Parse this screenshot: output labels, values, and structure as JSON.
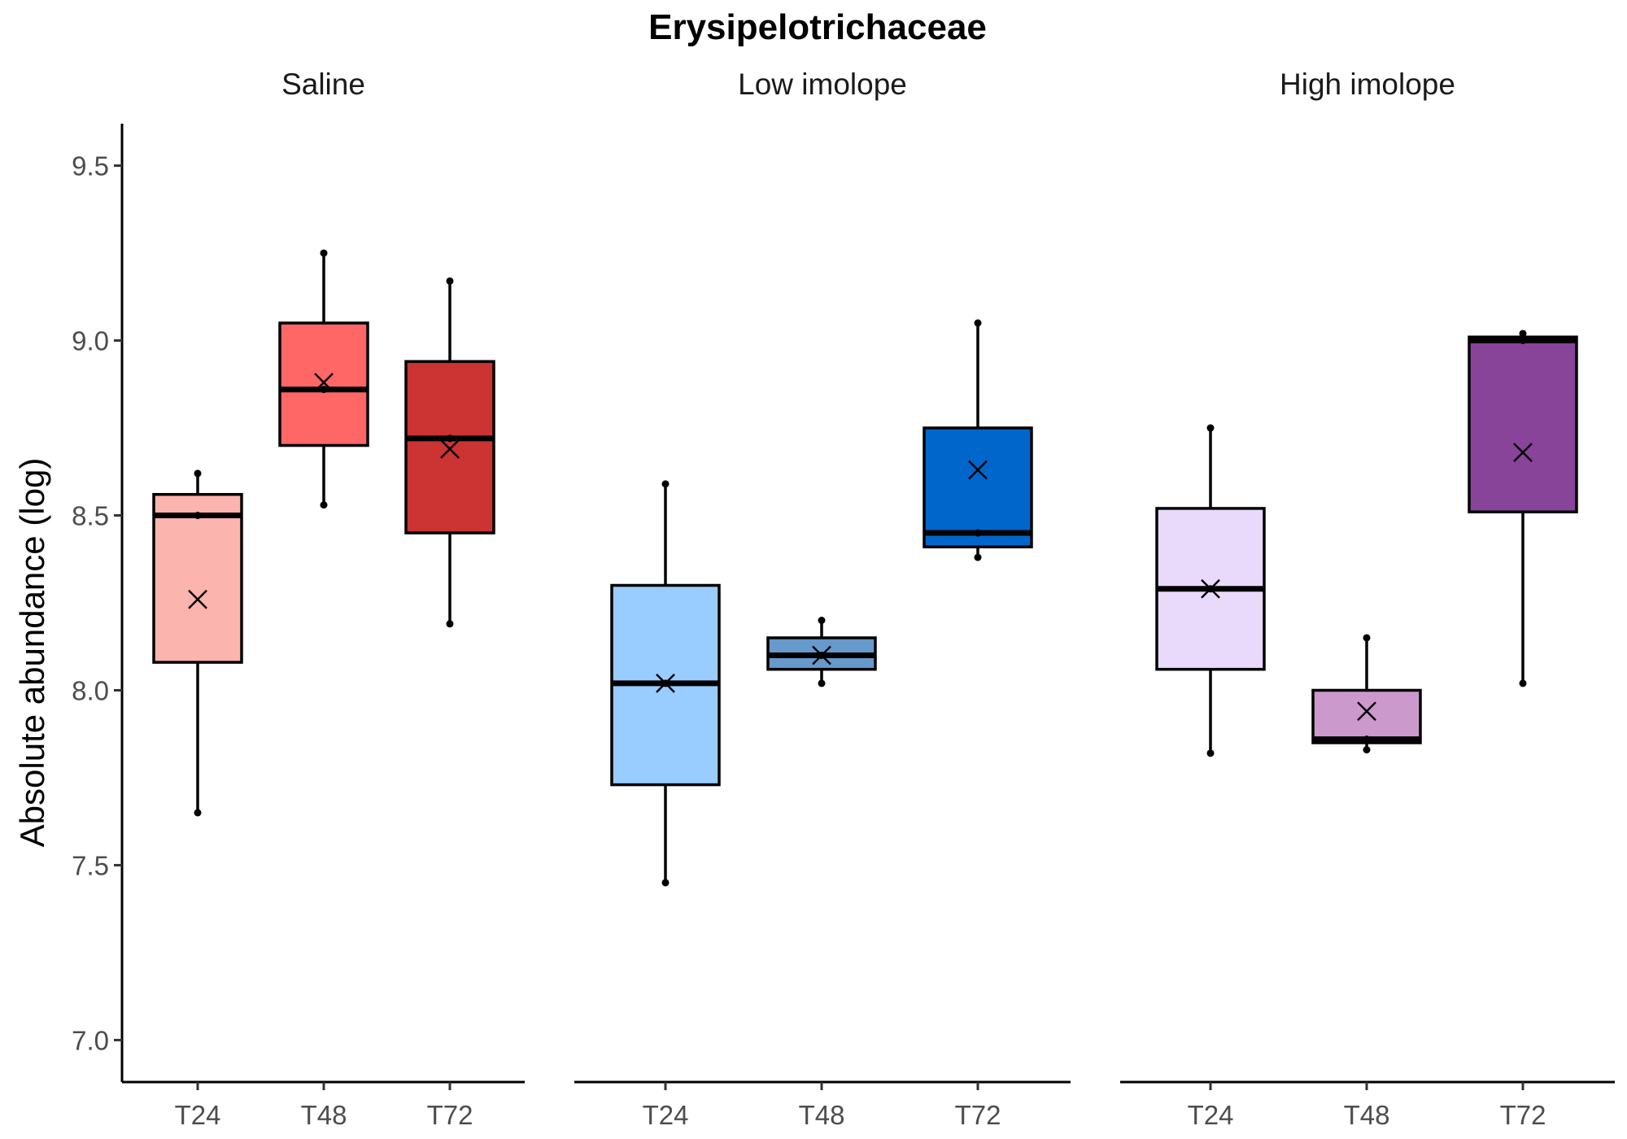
{
  "chart_data": {
    "type": "box",
    "title": "Erysipelotrichaceae",
    "ylabel": "Absolute abundance (log)",
    "xlabel": "",
    "ylim": [
      6.88,
      9.62
    ],
    "yticks": [
      7.0,
      7.5,
      8.0,
      8.5,
      9.0,
      9.5
    ],
    "ytick_labels": [
      "7.0",
      "7.5",
      "8.0",
      "8.5",
      "9.0",
      "9.5"
    ],
    "mean_marker": "x",
    "grid": false,
    "legend": "none",
    "categories": [
      "T24",
      "T48",
      "T72"
    ],
    "facets": [
      {
        "name": "Saline",
        "groups": [
          {
            "label": "T24",
            "color": "#FBB4AE",
            "whisker_low": 7.65,
            "q1": 8.08,
            "median": 8.5,
            "q3": 8.56,
            "whisker_high": 8.62,
            "mean": 8.26,
            "points": [
              7.65,
              8.5,
              8.62
            ]
          },
          {
            "label": "T48",
            "color": "#FF6666",
            "whisker_low": 8.53,
            "q1": 8.7,
            "median": 8.86,
            "q3": 9.05,
            "whisker_high": 9.25,
            "mean": 8.88,
            "points": [
              8.53,
              8.86,
              9.25
            ]
          },
          {
            "label": "T72",
            "color": "#CC3333",
            "whisker_low": 8.19,
            "q1": 8.45,
            "median": 8.72,
            "q3": 8.94,
            "whisker_high": 9.17,
            "mean": 8.69,
            "points": [
              8.19,
              8.72,
              9.17
            ]
          }
        ]
      },
      {
        "name": "Low imolope",
        "groups": [
          {
            "label": "T24",
            "color": "#99CCFF",
            "whisker_low": 7.45,
            "q1": 7.73,
            "median": 8.02,
            "q3": 8.3,
            "whisker_high": 8.59,
            "mean": 8.02,
            "points": [
              7.45,
              8.02,
              8.59
            ]
          },
          {
            "label": "T48",
            "color": "#6699CC",
            "whisker_low": 8.02,
            "q1": 8.06,
            "median": 8.1,
            "q3": 8.15,
            "whisker_high": 8.2,
            "mean": 8.1,
            "points": [
              8.02,
              8.1,
              8.2
            ]
          },
          {
            "label": "T72",
            "color": "#0066CC",
            "whisker_low": 8.38,
            "q1": 8.41,
            "median": 8.45,
            "q3": 8.75,
            "whisker_high": 9.05,
            "mean": 8.63,
            "points": [
              8.38,
              8.45,
              9.05
            ]
          }
        ]
      },
      {
        "name": "High imolope",
        "groups": [
          {
            "label": "T24",
            "color": "#E9DAFB",
            "whisker_low": 7.82,
            "q1": 8.06,
            "median": 8.29,
            "q3": 8.52,
            "whisker_high": 8.75,
            "mean": 8.29,
            "points": [
              7.82,
              8.29,
              8.75
            ]
          },
          {
            "label": "T48",
            "color": "#CC99CC",
            "whisker_low": 7.83,
            "q1": 7.85,
            "median": 7.86,
            "q3": 8.0,
            "whisker_high": 8.15,
            "mean": 7.94,
            "points": [
              7.83,
              7.86,
              8.15
            ]
          },
          {
            "label": "T72",
            "color": "#884499",
            "whisker_low": 8.02,
            "q1": 8.51,
            "median": 9.0,
            "q3": 9.01,
            "whisker_high": 9.02,
            "mean": 8.68,
            "points": [
              8.02,
              9.0,
              9.02
            ]
          }
        ]
      }
    ]
  }
}
